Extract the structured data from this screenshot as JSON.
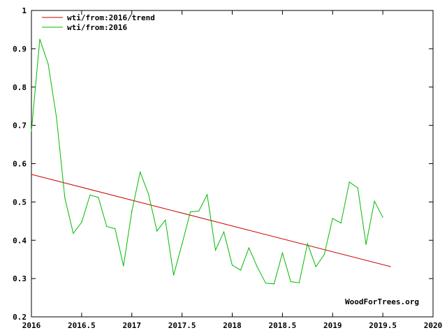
{
  "chart_data": {
    "type": "line",
    "title": "",
    "xlabel": "",
    "ylabel": "",
    "xlim": [
      2016,
      2020
    ],
    "ylim": [
      0.2,
      1
    ],
    "grid": false,
    "legend_placement": "top-left",
    "x_ticks": [
      "2016",
      "2016.5",
      "2017",
      "2017.5",
      "2018",
      "2018.5",
      "2019",
      "2019.5",
      "2020"
    ],
    "x_tick_values": [
      2016,
      2016.5,
      2017,
      2017.5,
      2018,
      2018.5,
      2019,
      2019.5,
      2020
    ],
    "y_ticks": [
      "0.2",
      "0.3",
      "0.4",
      "0.5",
      "0.6",
      "0.7",
      "0.8",
      "0.9",
      "1"
    ],
    "y_tick_values": [
      0.2,
      0.3,
      0.4,
      0.5,
      0.6,
      0.7,
      0.8,
      0.9,
      1
    ],
    "series": [
      {
        "name": "wti/from:2016/trend",
        "color": "#cc0000",
        "x": [
          2016,
          2019.58
        ],
        "values": [
          0.572,
          0.331
        ]
      },
      {
        "name": "wti/from:2016",
        "color": "#00bb00",
        "x_start": 2016,
        "x_step": 0.08333,
        "values": [
          0.685,
          0.925,
          0.86,
          0.72,
          0.51,
          0.418,
          0.447,
          0.518,
          0.512,
          0.436,
          0.43,
          0.333,
          0.475,
          0.578,
          0.52,
          0.424,
          0.453,
          0.309,
          0.39,
          0.474,
          0.476,
          0.519,
          0.374,
          0.422,
          0.335,
          0.322,
          0.38,
          0.33,
          0.288,
          0.286,
          0.367,
          0.292,
          0.289,
          0.391,
          0.331,
          0.363,
          0.457,
          0.445,
          0.552,
          0.537,
          0.389,
          0.502,
          0.46
        ]
      }
    ],
    "annotation": "WoodForTrees.org"
  }
}
